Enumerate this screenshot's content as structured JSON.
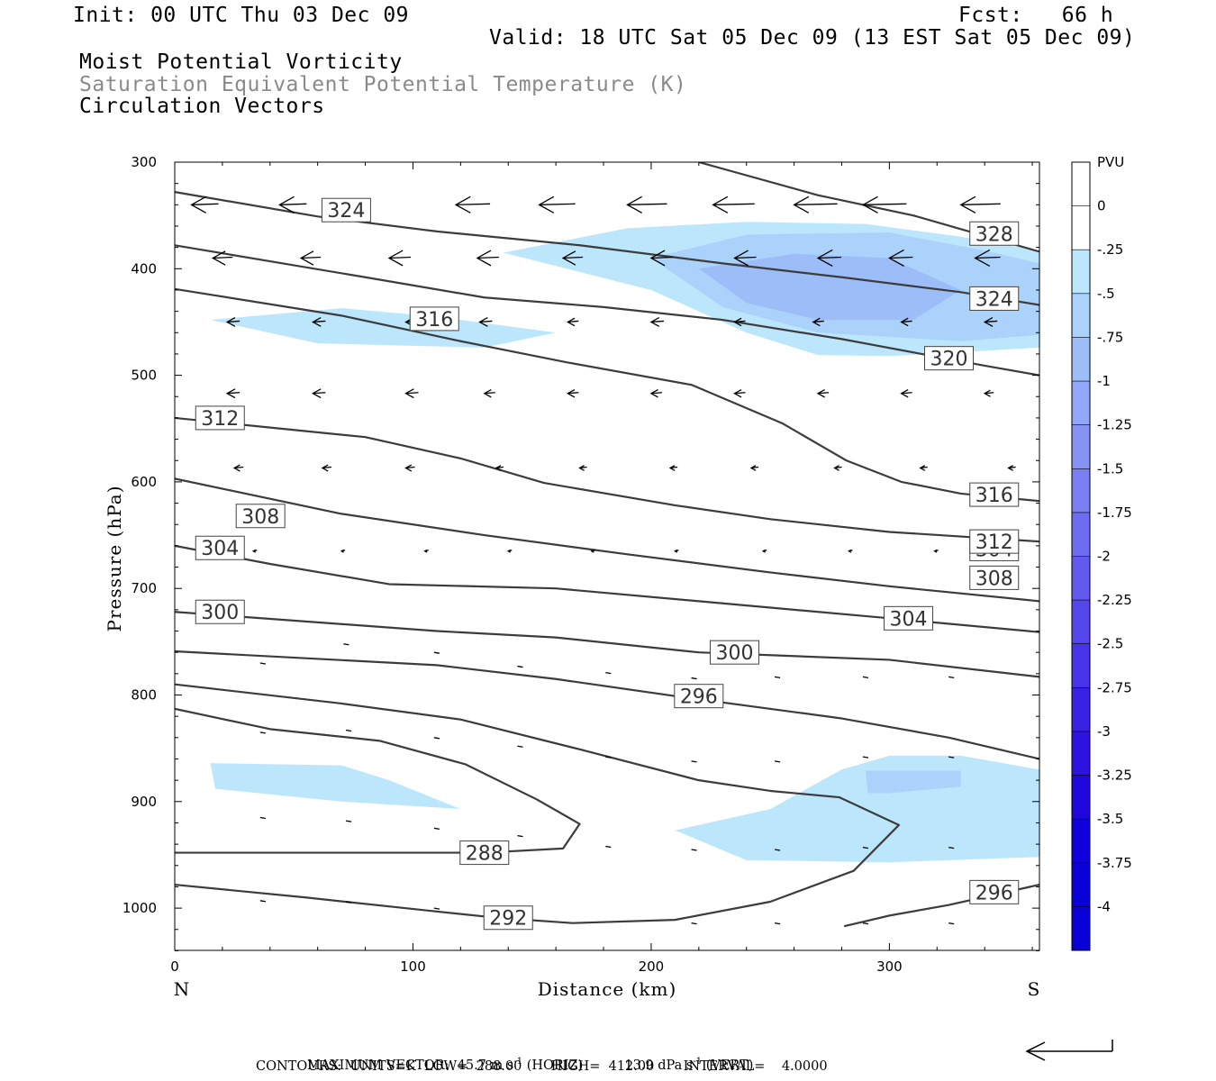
{
  "header": {
    "init": "Init: 00 UTC Thu 03 Dec 09",
    "fcst": "Fcst:   66 h",
    "valid": "Valid: 18 UTC Sat 05 Dec 09 (13 EST Sat 05 Dec 09)"
  },
  "legend": {
    "field1": "Moist Potential Vorticity",
    "field2": "Saturation Equivalent Potential Temperature (K)",
    "field3": "Circulation Vectors"
  },
  "footer": {
    "max_vector_label": "MAXIMUM VECTOR:",
    "horiz_value": "45.7 m s",
    "horiz_unit": "(HORIZ)",
    "vert_value": "13.9 dPa s",
    "vert_unit": "(VERT)",
    "contours": "CONTOURS:  UNITS=K  LOW=  288.00       HIGH=  412.00       INTERVAL=    4.0000"
  },
  "colors": {
    "contour": "#3c3c3c",
    "pv_fills": [
      "#ffffff",
      "#ffffff",
      "#bce6fb",
      "#aad2fb",
      "#9dbdf8",
      "#92a7f7",
      "#8693f5",
      "#7a80f3",
      "#6e6cf0",
      "#6259ee",
      "#5546eb",
      "#4834e8",
      "#3a22e5",
      "#2d12e2",
      "#1f06dd",
      "#1000db"
    ]
  },
  "chart_data": {
    "type": "contour",
    "xlabel": "Distance (km)",
    "ylabel": "Pressure (hPa)",
    "x_range": [
      0,
      363
    ],
    "y_range_hpa": [
      1040,
      300
    ],
    "x_ticks": [
      0,
      100,
      200,
      300
    ],
    "y_ticks": [
      300,
      400,
      500,
      600,
      700,
      800,
      900,
      1000
    ],
    "x_end_labels": {
      "left": "N",
      "right": "S"
    },
    "colorbar": {
      "title": "PVU",
      "labels": [
        "0",
        "-.25",
        "-.5",
        "-.75",
        "-1",
        "-1.25",
        "-1.5",
        "-1.75",
        "-2",
        "-2.25",
        "-2.5",
        "-2.75",
        "-3",
        "-3.25",
        "-3.5",
        "-3.75",
        "-4"
      ]
    },
    "theta_e_contours": [
      {
        "level": 288,
        "points": [
          [
            0,
            948
          ],
          [
            130,
            948
          ],
          [
            163,
            944
          ],
          [
            170,
            921
          ],
          [
            152,
            898
          ],
          [
            122,
            865
          ],
          [
            86,
            843
          ],
          [
            40,
            832
          ],
          [
            0,
            813
          ]
        ]
      },
      {
        "level": 292,
        "points": [
          [
            0,
            978
          ],
          [
            55,
            990
          ],
          [
            105,
            1002
          ],
          [
            135,
            1009
          ],
          [
            167,
            1014
          ],
          [
            210,
            1011
          ],
          [
            250,
            994
          ],
          [
            285,
            965
          ],
          [
            304,
            922
          ],
          [
            279,
            896
          ],
          [
            250,
            890
          ],
          [
            220,
            880
          ],
          [
            170,
            851
          ],
          [
            120,
            823
          ],
          [
            70,
            808
          ],
          [
            0,
            790
          ]
        ]
      },
      {
        "level": 296,
        "points": [
          [
            0,
            759
          ],
          [
            110,
            772
          ],
          [
            160,
            785
          ],
          [
            210,
            801
          ],
          [
            280,
            822
          ],
          [
            325,
            840
          ],
          [
            363,
            860
          ]
        ]
      },
      {
        "level": 296,
        "points": [
          [
            281,
            1017
          ],
          [
            300,
            1007
          ],
          [
            325,
            997
          ],
          [
            363,
            978
          ]
        ]
      },
      {
        "level": 300,
        "points": [
          [
            0,
            722
          ],
          [
            110,
            740
          ],
          [
            160,
            746
          ],
          [
            220,
            760
          ],
          [
            300,
            767
          ],
          [
            363,
            783
          ]
        ]
      },
      {
        "level": 304,
        "points": [
          [
            0,
            660
          ],
          [
            40,
            677
          ],
          [
            90,
            696
          ],
          [
            160,
            700
          ],
          [
            220,
            712
          ],
          [
            300,
            728
          ],
          [
            363,
            741
          ]
        ]
      },
      {
        "level": 308,
        "points": [
          [
            0,
            597
          ],
          [
            70,
            630
          ],
          [
            130,
            650
          ],
          [
            190,
            668
          ],
          [
            250,
            685
          ],
          [
            300,
            698
          ],
          [
            363,
            712
          ]
        ]
      },
      {
        "level": 312,
        "points": [
          [
            0,
            540
          ],
          [
            80,
            558
          ],
          [
            120,
            578
          ],
          [
            155,
            601
          ],
          [
            210,
            622
          ],
          [
            250,
            635
          ],
          [
            300,
            647
          ],
          [
            363,
            656
          ]
        ]
      },
      {
        "level": 316,
        "points": [
          [
            0,
            419
          ],
          [
            70,
            444
          ],
          [
            120,
            468
          ],
          [
            165,
            488
          ],
          [
            217,
            509
          ],
          [
            255,
            545
          ],
          [
            282,
            580
          ],
          [
            305,
            600
          ],
          [
            330,
            611
          ],
          [
            363,
            618
          ]
        ]
      },
      {
        "level": 320,
        "points": [
          [
            0,
            378
          ],
          [
            80,
            408
          ],
          [
            130,
            427
          ],
          [
            180,
            436
          ],
          [
            230,
            448
          ],
          [
            280,
            466
          ],
          [
            340,
            491
          ],
          [
            363,
            500
          ]
        ]
      },
      {
        "level": 324,
        "points": [
          [
            0,
            328
          ],
          [
            60,
            351
          ],
          [
            110,
            365
          ],
          [
            170,
            378
          ],
          [
            230,
            395
          ],
          [
            280,
            408
          ],
          [
            330,
            422
          ],
          [
            363,
            434
          ]
        ]
      },
      {
        "level": 328,
        "points": [
          [
            220,
            300
          ],
          [
            270,
            331
          ],
          [
            310,
            350
          ],
          [
            363,
            384
          ]
        ]
      }
    ],
    "pv_regions": [
      {
        "pvu": -0.25,
        "points": [
          [
            138,
            385
          ],
          [
            190,
            362
          ],
          [
            240,
            356
          ],
          [
            290,
            358
          ],
          [
            330,
            370
          ],
          [
            363,
            383
          ],
          [
            363,
            474
          ],
          [
            340,
            477
          ],
          [
            300,
            482
          ],
          [
            270,
            481
          ],
          [
            240,
            460
          ],
          [
            200,
            420
          ]
        ]
      },
      {
        "pvu": -0.5,
        "points": [
          [
            200,
            390
          ],
          [
            240,
            368
          ],
          [
            300,
            366
          ],
          [
            340,
            383
          ],
          [
            363,
            395
          ],
          [
            363,
            462
          ],
          [
            330,
            468
          ],
          [
            270,
            460
          ],
          [
            230,
            436
          ]
        ]
      },
      {
        "pvu": -0.75,
        "points": [
          [
            220,
            400
          ],
          [
            260,
            386
          ],
          [
            300,
            390
          ],
          [
            330,
            420
          ],
          [
            310,
            448
          ],
          [
            270,
            448
          ],
          [
            240,
            432
          ]
        ]
      },
      {
        "pvu": -0.25,
        "points": [
          [
            15,
            448
          ],
          [
            70,
            437
          ],
          [
            110,
            445
          ],
          [
            160,
            460
          ],
          [
            130,
            474
          ],
          [
            60,
            470
          ]
        ]
      },
      {
        "pvu": -0.25,
        "points": [
          [
            15,
            864
          ],
          [
            70,
            866
          ],
          [
            90,
            880
          ],
          [
            120,
            907
          ],
          [
            70,
            900
          ],
          [
            17,
            888
          ]
        ]
      },
      {
        "pvu": -0.25,
        "points": [
          [
            210,
            927
          ],
          [
            250,
            907
          ],
          [
            280,
            870
          ],
          [
            300,
            857
          ],
          [
            330,
            857
          ],
          [
            363,
            870
          ],
          [
            363,
            952
          ],
          [
            300,
            957
          ],
          [
            240,
            955
          ]
        ]
      },
      {
        "pvu": -0.5,
        "points": [
          [
            290,
            871
          ],
          [
            330,
            871
          ],
          [
            330,
            886
          ],
          [
            300,
            892
          ],
          [
            291,
            892
          ]
        ]
      }
    ],
    "vectors": [
      {
        "row_hpa": 340,
        "x": [
          7,
          44,
          118,
          153,
          190,
          226,
          260,
          289,
          330
        ],
        "len": [
          30,
          30,
          38,
          40,
          44,
          46,
          48,
          48,
          44
        ]
      },
      {
        "row_hpa": 390,
        "x": [
          16,
          53,
          90,
          127,
          163,
          200,
          235,
          270,
          300,
          336
        ],
        "len": [
          22,
          22,
          24,
          24,
          22,
          24,
          24,
          26,
          26,
          28
        ]
      },
      {
        "row_hpa": 450,
        "x": [
          22,
          58,
          97,
          128,
          165,
          200,
          235,
          268,
          305,
          340
        ],
        "len": [
          14,
          14,
          14,
          14,
          12,
          14,
          12,
          12,
          12,
          14
        ]
      },
      {
        "row_hpa": 517,
        "x": [
          22,
          58,
          97,
          130,
          165,
          200,
          235,
          270,
          305,
          340
        ],
        "len": [
          14,
          14,
          14,
          12,
          12,
          12,
          12,
          12,
          12,
          10
        ]
      },
      {
        "row_hpa": 587,
        "x": [
          25,
          62,
          97,
          135,
          170,
          208,
          242,
          277,
          313,
          350
        ],
        "len": [
          10,
          10,
          10,
          8,
          8,
          8,
          8,
          8,
          8,
          8
        ]
      },
      {
        "row_hpa": 665,
        "x": [
          33,
          70,
          105,
          140,
          175,
          210,
          247,
          283,
          319,
          352
        ],
        "len": [
          4,
          4,
          4,
          4,
          4,
          4,
          4,
          4,
          4,
          4
        ]
      }
    ]
  }
}
